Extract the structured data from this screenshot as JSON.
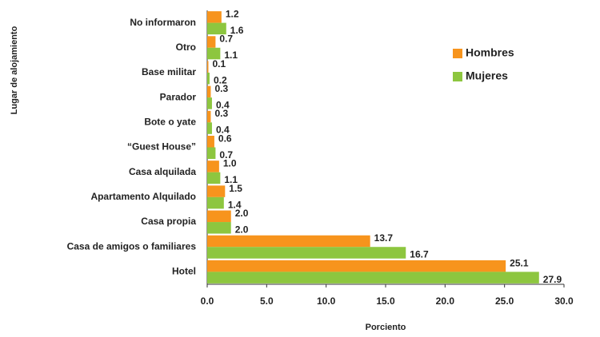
{
  "chart_data": {
    "type": "bar",
    "orientation": "horizontal",
    "x_label": "Porciento",
    "y_label": "Lugar de alojamiento",
    "categories": [
      "No informaron",
      "Otro",
      "Base militar",
      "Parador",
      "Bote o yate",
      "“Guest House”",
      "Casa alquilada",
      "Apartamento Alquilado",
      "Casa propia",
      "Casa de amigos o familiares",
      "Hotel"
    ],
    "series": [
      {
        "name": "Hombres",
        "color": "#f7941d",
        "values": [
          1.2,
          0.7,
          0.1,
          0.3,
          0.3,
          0.6,
          1.0,
          1.5,
          2.0,
          13.7,
          25.1
        ],
        "value_labels": [
          "1.2",
          "0.7",
          "0.1",
          "0.3",
          "0.3",
          "0.6",
          "1.0",
          "1.5",
          "2.0",
          "13.7",
          "25.1"
        ]
      },
      {
        "name": "Mujeres",
        "color": "#8dc63f",
        "values": [
          1.6,
          1.1,
          0.2,
          0.4,
          0.4,
          0.7,
          1.1,
          1.4,
          2.0,
          16.7,
          27.9
        ],
        "value_labels": [
          "1.6",
          "1.1",
          "0.2",
          "0.4",
          "0.4",
          "0.7",
          "1.1",
          "1.4",
          "2.0",
          "16.7",
          "27.9"
        ]
      }
    ],
    "xlim": [
      0,
      30
    ],
    "xticks": [
      {
        "value": 0,
        "label": "0.0"
      },
      {
        "value": 5,
        "label": "5.0"
      },
      {
        "value": 10,
        "label": "10.0"
      },
      {
        "value": 15,
        "label": "15.0"
      },
      {
        "value": 20,
        "label": "20.0"
      },
      {
        "value": 25,
        "label": "25.0"
      },
      {
        "value": 30,
        "label": "30.0"
      }
    ],
    "legend": "upper right",
    "grid": false
  }
}
